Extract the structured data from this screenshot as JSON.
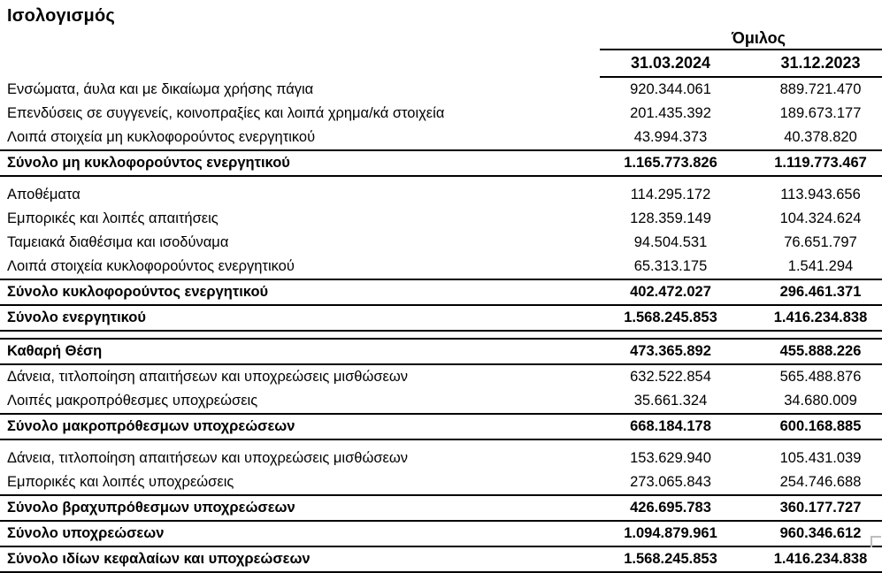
{
  "title": "Ισολογισμός",
  "table": {
    "group_header": "Όμιλος",
    "columns": [
      "31.03.2024",
      "31.12.2023"
    ],
    "rows": [
      {
        "label": "Ενσώματα, άυλα και με δικαίωμα χρήσης πάγια",
        "v2024": "920.344.061",
        "v2023": "889.721.470",
        "total": false
      },
      {
        "label": "Επενδύσεις σε συγγενείς, κοινοπραξίες και λοιπά χρημα/κά στοιχεία",
        "v2024": "201.435.392",
        "v2023": "189.673.177",
        "total": false
      },
      {
        "label": "Λοιπά στοιχεία μη κυκλοφορούντος ενεργητικού",
        "v2024": "43.994.373",
        "v2023": "40.378.820",
        "total": false
      },
      {
        "label": "Σύνολο μη κυκλοφορούντος ενεργητικού",
        "v2024": "1.165.773.826",
        "v2023": "1.119.773.467",
        "total": true
      },
      {
        "label": "Αποθέματα",
        "v2024": "114.295.172",
        "v2023": "113.943.656",
        "total": false
      },
      {
        "label": "Εμπορικές και λοιπές απαιτήσεις",
        "v2024": "128.359.149",
        "v2023": "104.324.624",
        "total": false
      },
      {
        "label": "Ταμειακά διαθέσιμα και ισοδύναμα",
        "v2024": "94.504.531",
        "v2023": "76.651.797",
        "total": false
      },
      {
        "label": "Λοιπά στοιχεία κυκλοφορούντος ενεργητικού",
        "v2024": "65.313.175",
        "v2023": "1.541.294",
        "total": false
      },
      {
        "label": "Σύνολο κυκλοφορούντος ενεργητικού",
        "v2024": "402.472.027",
        "v2023": "296.461.371",
        "total": true
      },
      {
        "label": "Σύνολο ενεργητικού",
        "v2024": "1.568.245.853",
        "v2023": "1.416.234.838",
        "total": true
      },
      {
        "label": "Καθαρή Θέση",
        "v2024": "473.365.892",
        "v2023": "455.888.226",
        "total": true
      },
      {
        "label": "Δάνεια, τιτλοποίηση απαιτήσεων και υποχρεώσεις μισθώσεων",
        "v2024": "632.522.854",
        "v2023": "565.488.876",
        "total": false
      },
      {
        "label": "Λοιπές μακροπρόθεσμες υποχρεώσεις",
        "v2024": "35.661.324",
        "v2023": "34.680.009",
        "total": false
      },
      {
        "label": "Σύνολο μακροπρόθεσμων υποχρεώσεων",
        "v2024": "668.184.178",
        "v2023": "600.168.885",
        "total": true
      },
      {
        "label": "Δάνεια, τιτλοποίηση απαιτήσεων και υποχρεώσεις μισθώσεων",
        "v2024": "153.629.940",
        "v2023": "105.431.039",
        "total": false
      },
      {
        "label": "Εμπορικές και λοιπές υποχρεώσεις",
        "v2024": "273.065.843",
        "v2023": "254.746.688",
        "total": false
      },
      {
        "label": "Σύνολο βραχυπρόθεσμων υποχρεώσεων",
        "v2024": "426.695.783",
        "v2023": "360.177.727",
        "total": true
      },
      {
        "label": "Σύνολο υποχρεώσεων",
        "v2024": "1.094.879.961",
        "v2023": "960.346.612",
        "total": true
      },
      {
        "label": "Σύνολο ιδίων κεφαλαίων και υποχρεώσεων",
        "v2024": "1.568.245.853",
        "v2023": "1.416.234.838",
        "total": true
      }
    ]
  }
}
